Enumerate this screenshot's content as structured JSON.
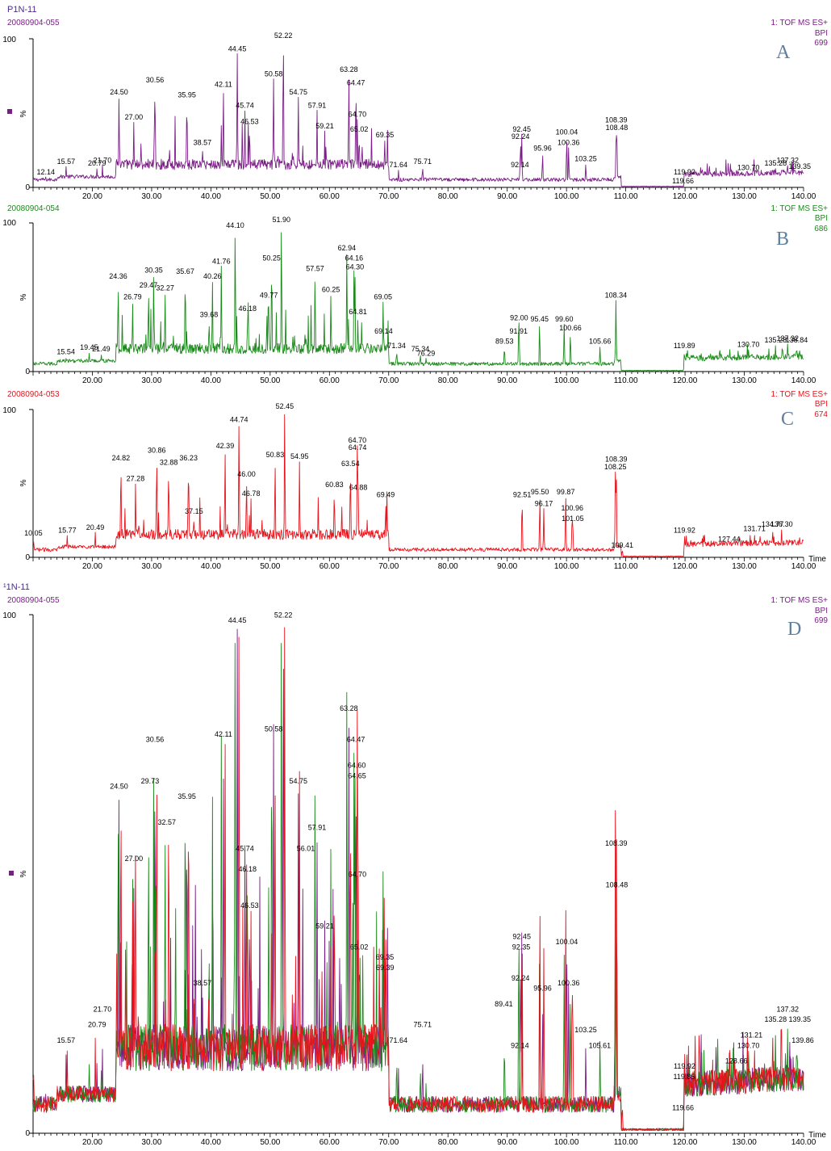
{
  "page": {
    "sample_name": "P1N-11",
    "overlay_sample_name": "¹1N-11"
  },
  "colors": {
    "A": "#7b1d87",
    "B": "#1a8a1a",
    "C": "#e8131b",
    "axis": "#000000",
    "letter": "#5e7fa0"
  },
  "x_axis": {
    "label": "Time",
    "ticks": [
      "20.00",
      "30.00",
      "40.00",
      "50.00",
      "60.00",
      "70.00",
      "80.00",
      "90.00",
      "100.00",
      "110.00",
      "120.00",
      "130.00",
      "140.00"
    ]
  },
  "chart_data": [
    {
      "type": "line",
      "panel": "A",
      "file": "20080904-055",
      "mode": "1: TOF MS ES+",
      "trace": "BPI",
      "max": "699",
      "ylabel": "%",
      "y_ticks": [
        "100",
        "0"
      ],
      "xlim": [
        10,
        140
      ],
      "ylim": [
        0,
        100
      ],
      "peaks": [
        {
          "x": 12.14,
          "y": 7
        },
        {
          "x": 15.57,
          "y": 14
        },
        {
          "x": 20.79,
          "y": 13
        },
        {
          "x": 21.7,
          "y": 15
        },
        {
          "x": 24.5,
          "y": 61
        },
        {
          "x": 27.0,
          "y": 44
        },
        {
          "x": 30.56,
          "y": 69
        },
        {
          "x": 35.95,
          "y": 59
        },
        {
          "x": 38.57,
          "y": 27
        },
        {
          "x": 42.11,
          "y": 66
        },
        {
          "x": 44.45,
          "y": 90
        },
        {
          "x": 45.74,
          "y": 52
        },
        {
          "x": 46.53,
          "y": 41
        },
        {
          "x": 50.58,
          "y": 73
        },
        {
          "x": 52.22,
          "y": 99
        },
        {
          "x": 54.75,
          "y": 61
        },
        {
          "x": 57.91,
          "y": 52
        },
        {
          "x": 59.21,
          "y": 38
        },
        {
          "x": 63.28,
          "y": 76
        },
        {
          "x": 64.47,
          "y": 67
        },
        {
          "x": 64.7,
          "y": 46
        },
        {
          "x": 65.02,
          "y": 36
        },
        {
          "x": 69.35,
          "y": 32
        },
        {
          "x": 71.64,
          "y": 12
        },
        {
          "x": 75.71,
          "y": 14
        },
        {
          "x": 92.14,
          "y": 12
        },
        {
          "x": 92.24,
          "y": 31
        },
        {
          "x": 92.45,
          "y": 36
        },
        {
          "x": 95.96,
          "y": 23
        },
        {
          "x": 100.04,
          "y": 34
        },
        {
          "x": 100.36,
          "y": 27
        },
        {
          "x": 103.25,
          "y": 16
        },
        {
          "x": 108.39,
          "y": 42
        },
        {
          "x": 108.48,
          "y": 37
        },
        {
          "x": 119.66,
          "y": 1
        },
        {
          "x": 119.92,
          "y": 7
        },
        {
          "x": 130.7,
          "y": 10
        },
        {
          "x": 135.28,
          "y": 13
        },
        {
          "x": 137.32,
          "y": 15
        },
        {
          "x": 139.35,
          "y": 11
        }
      ]
    },
    {
      "type": "line",
      "panel": "B",
      "file": "20080904-054",
      "mode": "1: TOF MS ES+",
      "trace": "BPI",
      "max": "686",
      "ylabel": "%",
      "y_ticks": [
        "100",
        "0"
      ],
      "xlim": [
        10,
        140
      ],
      "ylim": [
        0,
        100
      ],
      "peaks": [
        {
          "x": 15.54,
          "y": 10
        },
        {
          "x": 19.45,
          "y": 13
        },
        {
          "x": 21.49,
          "y": 12
        },
        {
          "x": 24.36,
          "y": 61
        },
        {
          "x": 26.79,
          "y": 47
        },
        {
          "x": 29.47,
          "y": 55
        },
        {
          "x": 30.35,
          "y": 65
        },
        {
          "x": 32.27,
          "y": 53
        },
        {
          "x": 35.67,
          "y": 64
        },
        {
          "x": 39.68,
          "y": 35
        },
        {
          "x": 40.26,
          "y": 61
        },
        {
          "x": 41.76,
          "y": 71
        },
        {
          "x": 44.1,
          "y": 95
        },
        {
          "x": 46.18,
          "y": 39
        },
        {
          "x": 49.77,
          "y": 48
        },
        {
          "x": 50.25,
          "y": 73
        },
        {
          "x": 51.9,
          "y": 99
        },
        {
          "x": 57.57,
          "y": 66
        },
        {
          "x": 60.25,
          "y": 52
        },
        {
          "x": 62.94,
          "y": 80
        },
        {
          "x": 64.16,
          "y": 73
        },
        {
          "x": 64.3,
          "y": 67
        },
        {
          "x": 64.81,
          "y": 37
        },
        {
          "x": 69.05,
          "y": 47
        },
        {
          "x": 69.14,
          "y": 24
        },
        {
          "x": 71.34,
          "y": 14
        },
        {
          "x": 75.34,
          "y": 12
        },
        {
          "x": 76.29,
          "y": 9
        },
        {
          "x": 89.53,
          "y": 17
        },
        {
          "x": 91.91,
          "y": 24
        },
        {
          "x": 92.0,
          "y": 33
        },
        {
          "x": 95.45,
          "y": 32
        },
        {
          "x": 99.6,
          "y": 32
        },
        {
          "x": 100.66,
          "y": 26
        },
        {
          "x": 105.66,
          "y": 17
        },
        {
          "x": 108.34,
          "y": 48
        },
        {
          "x": 119.89,
          "y": 14
        },
        {
          "x": 130.7,
          "y": 15
        },
        {
          "x": 135.28,
          "y": 18
        },
        {
          "x": 137.32,
          "y": 19
        },
        {
          "x": 138.84,
          "y": 18
        }
      ]
    },
    {
      "type": "line",
      "panel": "C",
      "file": "20080904-053",
      "mode": "1: TOF MS ES+",
      "trace": "BPI",
      "max": "674",
      "ylabel": "%",
      "y_ticks": [
        "100",
        "0"
      ],
      "xlim": [
        10,
        140
      ],
      "ylim": [
        0,
        100
      ],
      "peaks": [
        {
          "x": 10.05,
          "y": 13
        },
        {
          "x": 15.77,
          "y": 15
        },
        {
          "x": 20.49,
          "y": 17
        },
        {
          "x": 24.82,
          "y": 64
        },
        {
          "x": 27.28,
          "y": 50
        },
        {
          "x": 30.86,
          "y": 69
        },
        {
          "x": 32.88,
          "y": 61
        },
        {
          "x": 36.23,
          "y": 64
        },
        {
          "x": 37.15,
          "y": 28
        },
        {
          "x": 42.39,
          "y": 72
        },
        {
          "x": 44.74,
          "y": 90
        },
        {
          "x": 46.0,
          "y": 53
        },
        {
          "x": 46.78,
          "y": 40
        },
        {
          "x": 50.83,
          "y": 66
        },
        {
          "x": 52.45,
          "y": 99
        },
        {
          "x": 54.95,
          "y": 65
        },
        {
          "x": 60.83,
          "y": 46
        },
        {
          "x": 63.54,
          "y": 60
        },
        {
          "x": 64.7,
          "y": 76
        },
        {
          "x": 64.74,
          "y": 71
        },
        {
          "x": 64.88,
          "y": 44
        },
        {
          "x": 69.49,
          "y": 39
        },
        {
          "x": 92.51,
          "y": 39
        },
        {
          "x": 95.5,
          "y": 41
        },
        {
          "x": 96.17,
          "y": 33
        },
        {
          "x": 99.87,
          "y": 41
        },
        {
          "x": 100.96,
          "y": 30
        },
        {
          "x": 101.05,
          "y": 23
        },
        {
          "x": 108.25,
          "y": 58
        },
        {
          "x": 108.39,
          "y": 63
        },
        {
          "x": 109.41,
          "y": 5
        },
        {
          "x": 119.92,
          "y": 15
        },
        {
          "x": 127.44,
          "y": 9
        },
        {
          "x": 131.71,
          "y": 16
        },
        {
          "x": 134.77,
          "y": 19
        },
        {
          "x": 136.3,
          "y": 19
        }
      ]
    },
    {
      "type": "line",
      "panel": "D",
      "file": "20080904-055",
      "mode": "1: TOF MS ES+",
      "trace": "BPI",
      "max": "699",
      "ylabel": "%",
      "y_ticks": [
        "100",
        "0"
      ],
      "xlim": [
        10,
        140
      ],
      "ylim": [
        0,
        100
      ],
      "series": [
        {
          "name": "20080904-055",
          "color_key": "A"
        },
        {
          "name": "20080904-054",
          "color_key": "B"
        },
        {
          "name": "20080904-053",
          "color_key": "C"
        }
      ],
      "labels": [
        {
          "x": 15.57,
          "y": 17
        },
        {
          "x": 20.79,
          "y": 20
        },
        {
          "x": 21.7,
          "y": 23
        },
        {
          "x": 24.5,
          "y": 66
        },
        {
          "x": 27.0,
          "y": 52
        },
        {
          "x": 29.73,
          "y": 67
        },
        {
          "x": 30.56,
          "y": 75
        },
        {
          "x": 32.57,
          "y": 59
        },
        {
          "x": 35.95,
          "y": 64
        },
        {
          "x": 38.57,
          "y": 28
        },
        {
          "x": 42.11,
          "y": 76
        },
        {
          "x": 44.45,
          "y": 98
        },
        {
          "x": 45.74,
          "y": 54
        },
        {
          "x": 46.18,
          "y": 50
        },
        {
          "x": 46.53,
          "y": 43
        },
        {
          "x": 50.58,
          "y": 77
        },
        {
          "x": 52.22,
          "y": 99
        },
        {
          "x": 54.75,
          "y": 67
        },
        {
          "x": 56.01,
          "y": 54
        },
        {
          "x": 57.91,
          "y": 58
        },
        {
          "x": 59.21,
          "y": 39
        },
        {
          "x": 63.28,
          "y": 81
        },
        {
          "x": 64.47,
          "y": 75
        },
        {
          "x": 64.6,
          "y": 70
        },
        {
          "x": 64.65,
          "y": 68
        },
        {
          "x": 64.7,
          "y": 49
        },
        {
          "x": 65.02,
          "y": 35
        },
        {
          "x": 69.35,
          "y": 33
        },
        {
          "x": 69.39,
          "y": 31
        },
        {
          "x": 71.64,
          "y": 17
        },
        {
          "x": 75.71,
          "y": 20
        },
        {
          "x": 89.41,
          "y": 24
        },
        {
          "x": 92.14,
          "y": 16
        },
        {
          "x": 92.24,
          "y": 29
        },
        {
          "x": 92.35,
          "y": 35
        },
        {
          "x": 92.45,
          "y": 37
        },
        {
          "x": 95.96,
          "y": 27
        },
        {
          "x": 100.04,
          "y": 36
        },
        {
          "x": 100.36,
          "y": 28
        },
        {
          "x": 103.25,
          "y": 19
        },
        {
          "x": 105.61,
          "y": 16
        },
        {
          "x": 108.39,
          "y": 55
        },
        {
          "x": 108.48,
          "y": 47
        },
        {
          "x": 119.66,
          "y": 4
        },
        {
          "x": 119.85,
          "y": 10
        },
        {
          "x": 119.92,
          "y": 12
        },
        {
          "x": 128.66,
          "y": 13
        },
        {
          "x": 130.7,
          "y": 16
        },
        {
          "x": 131.21,
          "y": 18
        },
        {
          "x": 135.28,
          "y": 21
        },
        {
          "x": 137.32,
          "y": 23
        },
        {
          "x": 139.35,
          "y": 21
        },
        {
          "x": 139.86,
          "y": 17
        }
      ]
    }
  ]
}
